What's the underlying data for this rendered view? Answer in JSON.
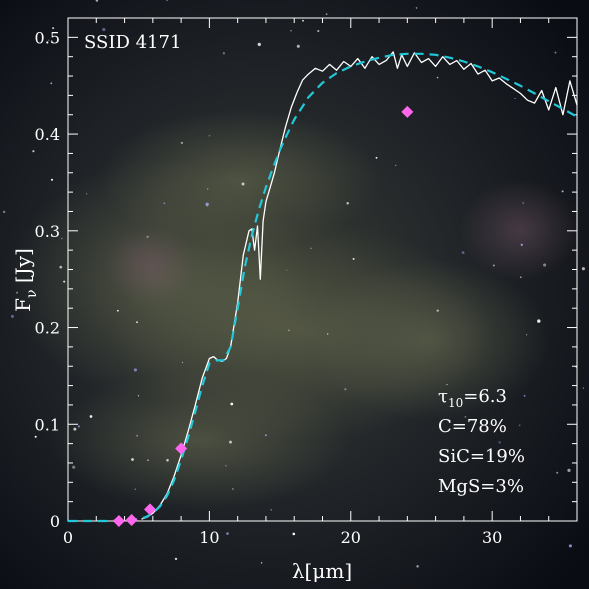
{
  "chart_data": {
    "type": "line",
    "title": "SSID 4171",
    "xlabel": "λ[μm]",
    "ylabel": "Fν [Jy]",
    "xlim": [
      0,
      36
    ],
    "ylim": [
      0,
      0.52
    ],
    "xticks": [
      0,
      10,
      20,
      30
    ],
    "xtick_labels": [
      "0",
      "10",
      "20",
      "30"
    ],
    "yticks": [
      0,
      0.1,
      0.2,
      0.3,
      0.4,
      0.5
    ],
    "ytick_labels": [
      "0",
      "0.1",
      "0.2",
      "0.3",
      "0.4",
      "0.5"
    ],
    "grid": false,
    "colors": {
      "spectrum": "#ffffff",
      "model": "#22c8d8",
      "photometry": "#ff66ee",
      "text": "#ffffff"
    },
    "series": [
      {
        "role": "spectrum",
        "style": "solid",
        "x": [
          5.2,
          5.6,
          6.0,
          6.5,
          7.0,
          7.5,
          8.0,
          8.5,
          9.0,
          9.5,
          10.0,
          10.3,
          10.6,
          10.9,
          11.2,
          11.5,
          12.0,
          12.4,
          12.8,
          13.0,
          13.2,
          13.4,
          13.6,
          13.8,
          14.0,
          14.3,
          14.6,
          15.0,
          15.4,
          15.8,
          16.2,
          16.6,
          17.0,
          17.5,
          18.0,
          18.5,
          19.0,
          19.5,
          20.0,
          20.5,
          21.0,
          21.5,
          22.0,
          22.5,
          23.0,
          23.3,
          23.6,
          24.0,
          24.5,
          25.0,
          25.5,
          26.0,
          26.5,
          27.0,
          27.5,
          28.0,
          28.5,
          29.0,
          29.5,
          30.0,
          30.5,
          31.0,
          31.5,
          32.0,
          32.5,
          33.0,
          33.5,
          34.0,
          34.5,
          35.0,
          35.5,
          36.0
        ],
        "values": [
          0.002,
          0.004,
          0.008,
          0.016,
          0.028,
          0.046,
          0.068,
          0.093,
          0.12,
          0.148,
          0.168,
          0.17,
          0.166,
          0.165,
          0.168,
          0.18,
          0.226,
          0.275,
          0.3,
          0.302,
          0.28,
          0.305,
          0.25,
          0.31,
          0.33,
          0.345,
          0.36,
          0.385,
          0.408,
          0.428,
          0.443,
          0.456,
          0.462,
          0.468,
          0.465,
          0.472,
          0.466,
          0.475,
          0.47,
          0.478,
          0.468,
          0.48,
          0.472,
          0.476,
          0.485,
          0.468,
          0.482,
          0.47,
          0.484,
          0.474,
          0.478,
          0.47,
          0.48,
          0.472,
          0.476,
          0.467,
          0.473,
          0.462,
          0.466,
          0.455,
          0.458,
          0.452,
          0.447,
          0.442,
          0.435,
          0.432,
          0.445,
          0.425,
          0.448,
          0.42,
          0.455,
          0.43
        ]
      },
      {
        "role": "model",
        "style": "dashed",
        "x": [
          0,
          1,
          2,
          3,
          4,
          5,
          5.5,
          6,
          6.5,
          7,
          7.5,
          8,
          8.5,
          9,
          9.5,
          10,
          10.5,
          11,
          11.5,
          12,
          12.5,
          13,
          13.5,
          14,
          14.5,
          15,
          15.5,
          16,
          17,
          18,
          19,
          20,
          21,
          22,
          23,
          24,
          25,
          26,
          27,
          28,
          29,
          30,
          31,
          32,
          33,
          34,
          35,
          36
        ],
        "values": [
          0,
          0,
          0,
          0,
          0.0005,
          0.002,
          0.004,
          0.008,
          0.015,
          0.026,
          0.042,
          0.063,
          0.087,
          0.113,
          0.14,
          0.163,
          0.166,
          0.166,
          0.18,
          0.22,
          0.262,
          0.295,
          0.322,
          0.345,
          0.365,
          0.384,
          0.4,
          0.415,
          0.438,
          0.453,
          0.463,
          0.47,
          0.475,
          0.479,
          0.482,
          0.483,
          0.483,
          0.482,
          0.479,
          0.475,
          0.47,
          0.464,
          0.457,
          0.45,
          0.442,
          0.434,
          0.426,
          0.418
        ]
      },
      {
        "role": "photometry",
        "style": "markers",
        "x": [
          3.6,
          4.5,
          5.8,
          8.0,
          24.0
        ],
        "values": [
          0.0,
          0.001,
          0.012,
          0.075,
          0.423
        ]
      }
    ],
    "annotations": [
      {
        "id": "tau",
        "text": "τ10=6.3"
      },
      {
        "id": "carbon",
        "text": "C=78%"
      },
      {
        "id": "sic",
        "text": "SiC=19%"
      },
      {
        "id": "mgs",
        "text": "MgS=3%"
      }
    ]
  }
}
